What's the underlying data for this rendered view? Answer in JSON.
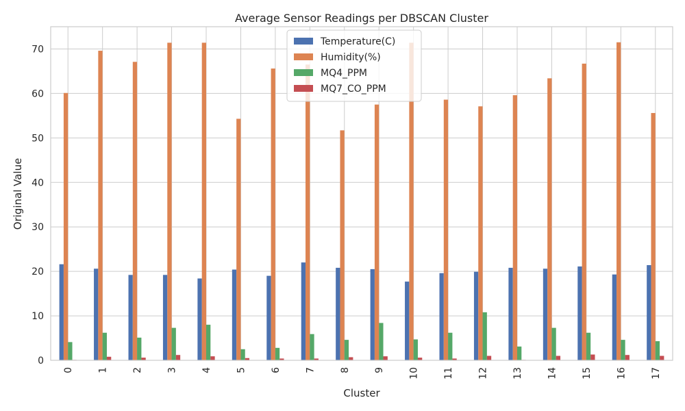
{
  "chart_data": {
    "type": "bar",
    "title": "Average Sensor Readings per DBSCAN Cluster",
    "xlabel": "Cluster",
    "ylabel": "Original Value",
    "ylim": [
      0,
      75
    ],
    "yticks": [
      0,
      10,
      20,
      30,
      40,
      50,
      60,
      70
    ],
    "grid": true,
    "legend_position": "top-center",
    "categories": [
      "0",
      "1",
      "2",
      "3",
      "4",
      "5",
      "6",
      "7",
      "8",
      "9",
      "10",
      "11",
      "12",
      "13",
      "14",
      "15",
      "16",
      "17"
    ],
    "series": [
      {
        "name": "Temperature(C)",
        "color": "#4c72b0",
        "values": [
          21.6,
          20.6,
          19.2,
          19.2,
          18.4,
          20.4,
          19.0,
          22.0,
          20.8,
          20.5,
          17.7,
          19.6,
          19.9,
          20.8,
          20.6,
          21.1,
          19.3,
          21.4
        ]
      },
      {
        "name": "Humidity(%)",
        "color": "#dd8452",
        "values": [
          60.1,
          69.6,
          67.1,
          71.4,
          71.4,
          54.3,
          65.6,
          66.5,
          51.7,
          57.5,
          71.4,
          58.6,
          57.1,
          59.6,
          63.4,
          66.7,
          71.5,
          55.6
        ]
      },
      {
        "name": "MQ4_PPM",
        "color": "#55a868",
        "values": [
          4.1,
          6.2,
          5.1,
          7.3,
          8.0,
          2.5,
          2.8,
          5.9,
          4.6,
          8.4,
          4.7,
          6.2,
          10.8,
          3.1,
          7.3,
          6.2,
          4.6,
          4.3
        ]
      },
      {
        "name": "MQ7_CO_PPM",
        "color": "#c44e52",
        "values": [
          0.1,
          0.8,
          0.6,
          1.2,
          0.9,
          0.5,
          0.4,
          0.4,
          0.7,
          0.9,
          0.6,
          0.4,
          1.0,
          0.1,
          1.0,
          1.3,
          1.2,
          1.0
        ]
      }
    ]
  }
}
